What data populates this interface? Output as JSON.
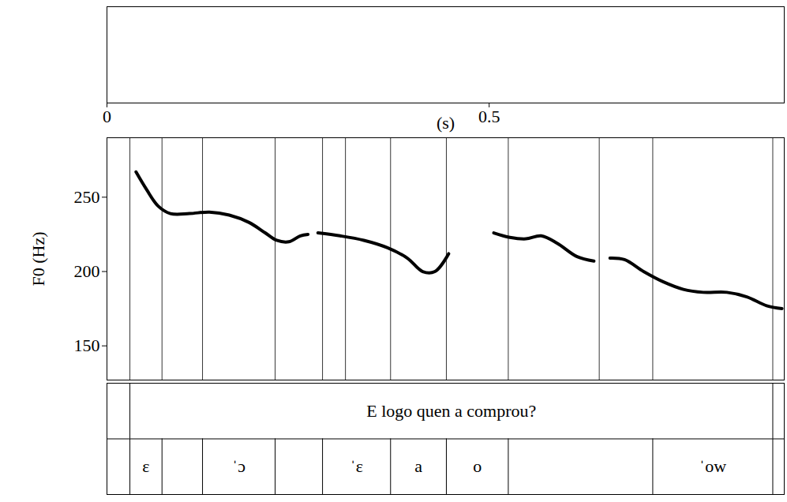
{
  "chart_data": {
    "type": "line",
    "xlabel": "(s)",
    "ylabel": "F0 (Hz)",
    "xlim": [
      0,
      0.886
    ],
    "xticks": [
      0,
      0.5
    ],
    "ylim": [
      127,
      290
    ],
    "yticks": [
      150,
      200,
      250
    ],
    "color": "#000000",
    "x": [
      0.038,
      0.052,
      0.067,
      0.083,
      0.108,
      0.134,
      0.16,
      0.186,
      0.207,
      0.222,
      0.238,
      0.253,
      0.263,
      null,
      0.276,
      0.305,
      0.336,
      0.367,
      0.393,
      0.413,
      0.429,
      0.447,
      null,
      0.506,
      0.527,
      0.548,
      0.568,
      0.589,
      0.615,
      0.637,
      null,
      0.658,
      0.677,
      0.702,
      0.728,
      0.754,
      0.78,
      0.811,
      0.837,
      0.863,
      0.883
    ],
    "values": [
      267,
      255,
      244,
      239,
      239,
      240,
      238,
      233,
      226,
      221,
      220,
      224,
      225,
      null,
      226,
      224,
      221,
      216,
      209,
      200,
      200,
      212,
      null,
      226,
      223,
      222,
      224,
      219,
      210,
      207,
      null,
      209,
      208,
      200,
      193,
      188,
      186,
      186,
      183,
      177,
      175
    ],
    "boundaries": [
      0.03,
      0.072,
      0.125,
      0.22,
      0.282,
      0.312,
      0.371,
      0.444,
      0.525,
      0.644,
      0.714,
      0.871
    ],
    "sentence": {
      "start": 0.03,
      "end": 0.871,
      "text": "E logo quen a comprou?"
    },
    "segments": [
      {
        "start": 0.03,
        "end": 0.072,
        "label": "ɛ"
      },
      {
        "start": 0.125,
        "end": 0.22,
        "label": "ˈɔ"
      },
      {
        "start": 0.282,
        "end": 0.371,
        "label": "ˈɛ"
      },
      {
        "start": 0.371,
        "end": 0.444,
        "label": "a"
      },
      {
        "start": 0.444,
        "end": 0.525,
        "label": "o"
      },
      {
        "start": 0.714,
        "end": 0.871,
        "label": "ˈow"
      }
    ]
  }
}
